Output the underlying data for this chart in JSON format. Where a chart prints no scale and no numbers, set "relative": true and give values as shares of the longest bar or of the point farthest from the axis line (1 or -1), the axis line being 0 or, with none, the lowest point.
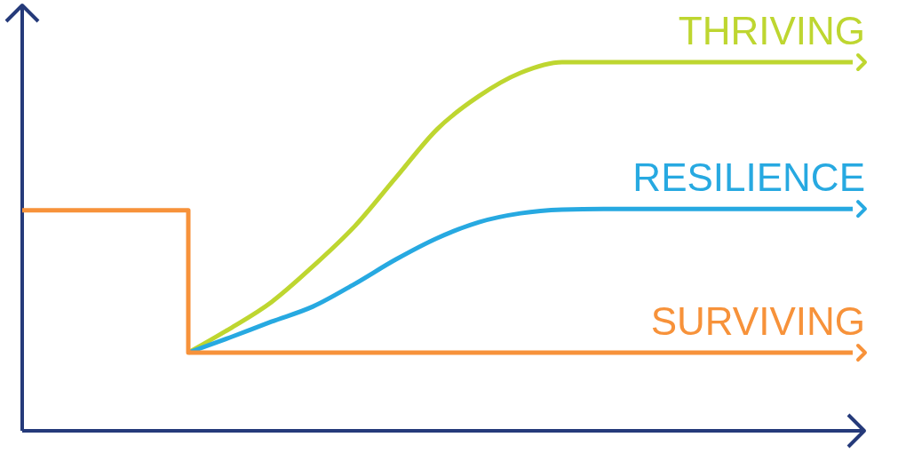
{
  "chart_data": {
    "type": "line",
    "relative": true,
    "legend": false,
    "marker": "none",
    "categories": [
      null,
      null,
      null,
      null,
      null,
      null,
      null,
      null,
      null,
      null,
      null,
      null,
      null,
      null,
      null,
      null,
      null,
      null,
      null,
      null,
      null
    ],
    "series": [
      {
        "name": "THRIVING",
        "color": "#bed630",
        "values": [
          null,
          null,
          null,
          null,
          0.212,
          0.277,
          0.349,
          0.446,
          0.554,
          0.687,
          0.819,
          0.908,
          0.971,
          1,
          1,
          1,
          1,
          1,
          1,
          1,
          1
        ]
      },
      {
        "name": "RESILIENCE",
        "color": "#27a9e1",
        "values": [
          null,
          null,
          null,
          null,
          0.212,
          0.253,
          0.296,
          0.337,
          0.398,
          0.465,
          0.523,
          0.566,
          0.59,
          0.6,
          0.602,
          0.602,
          0.602,
          0.602,
          0.602,
          0.602,
          0.602
        ]
      },
      {
        "name": "SURVIVING",
        "type": "step",
        "color": "#f7923a",
        "values": [
          0.598,
          0.598,
          0.598,
          0.598,
          0.212,
          0.212,
          0.212,
          0.212,
          0.212,
          0.212,
          0.212,
          0.212,
          0.212,
          0.212,
          0.212,
          0.212,
          0.212,
          0.212,
          0.212,
          0.212,
          0.212
        ]
      }
    ]
  }
}
